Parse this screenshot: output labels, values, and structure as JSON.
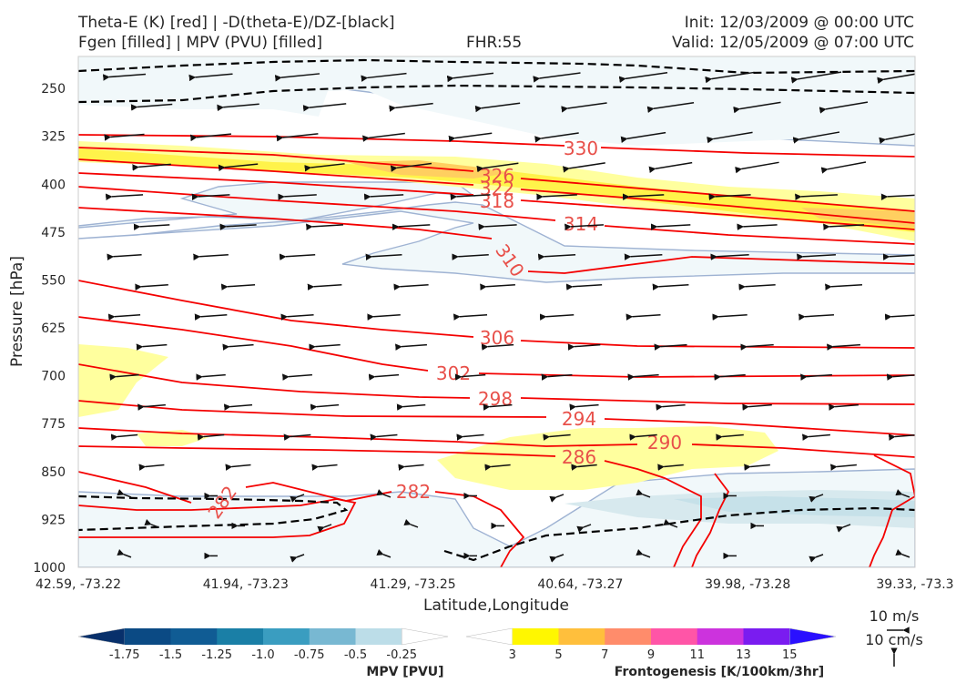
{
  "titles": {
    "left1": "Theta-E (K) [red] | -D(theta-E)/DZ-[black]",
    "left2": "Fgen [filled] | MPV (PVU) [filled]",
    "center": "FHR:55",
    "right1": "Init: 12/03/2009 @ 00:00 UTC",
    "right2": "Valid: 12/05/2009 @ 07:00 UTC"
  },
  "chart_data": {
    "type": "cross-section",
    "xlabel": "Latitude,Longitude",
    "ylabel": "Pressure [hPa]",
    "ylim": [
      1000,
      200
    ],
    "x_ticks": [
      "42.59, -73.22",
      "41.94, -73.23",
      "41.29, -73.25",
      "40.64, -73.27",
      "39.98, -73.28",
      "39.33, -73.3"
    ],
    "y_ticks": [
      250,
      325,
      400,
      475,
      550,
      625,
      700,
      775,
      850,
      925,
      1000
    ],
    "theta_e_contours": [
      {
        "value": 330,
        "label": "330"
      },
      {
        "value": 326,
        "label": "326"
      },
      {
        "value": 322,
        "label": "322"
      },
      {
        "value": 318,
        "label": "318"
      },
      {
        "value": 314,
        "label": "314"
      },
      {
        "value": 310,
        "label": "310"
      },
      {
        "value": 306,
        "label": "306"
      },
      {
        "value": 302,
        "label": "302"
      },
      {
        "value": 298,
        "label": "298"
      },
      {
        "value": 294,
        "label": "294"
      },
      {
        "value": 290,
        "label": "290"
      },
      {
        "value": 286,
        "label": "286"
      },
      {
        "value": 282,
        "label": "282"
      }
    ],
    "mpv_colorbar": {
      "title": "MPV [PVU]",
      "ticks": [
        "-1.75",
        "-1.5",
        "-1.25",
        "-1.0",
        "-0.75",
        "-0.5",
        "-0.25"
      ],
      "colors": [
        "#08306b",
        "#0b4a84",
        "#105c94",
        "#1a7fa6",
        "#3a9dc0",
        "#78b8d2",
        "#bcdde8",
        "#ffffff"
      ]
    },
    "fgen_colorbar": {
      "title": "Frontogenesis [K/100km/3hr]",
      "ticks": [
        "3",
        "5",
        "7",
        "9",
        "11",
        "13",
        "15"
      ],
      "colors": [
        "#ffffff",
        "#fff700",
        "#ffbf3c",
        "#ff8c6b",
        "#ff55a7",
        "#cc33dd",
        "#7a1cf0",
        "#2a10ff"
      ]
    },
    "reference_vectors": {
      "horizontal": "10 m/s",
      "vertical": "10 cm/s"
    }
  }
}
